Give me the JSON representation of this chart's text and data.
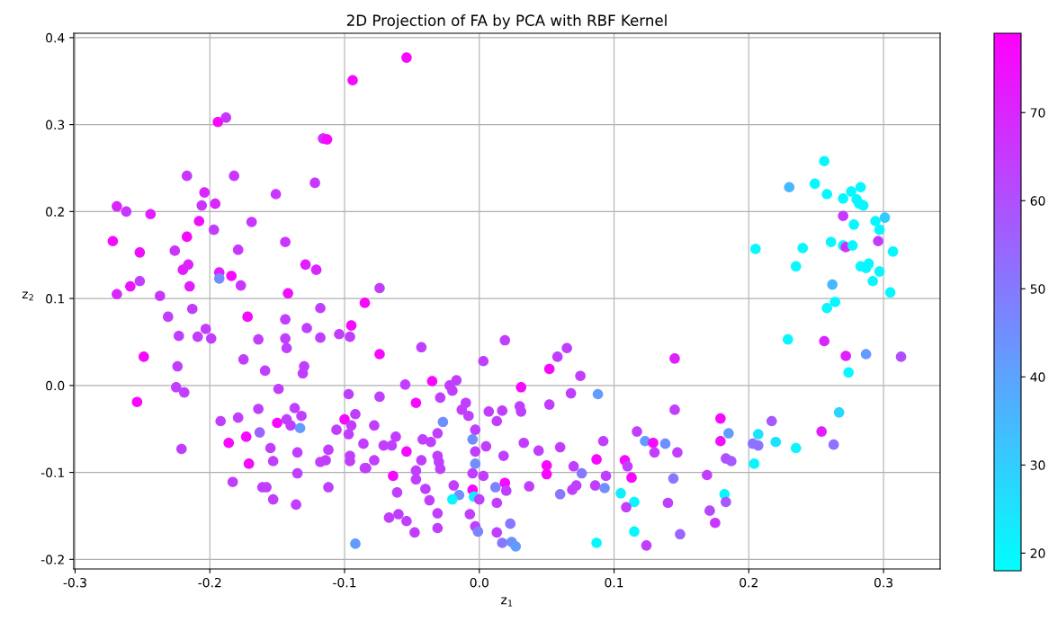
{
  "chart_data": {
    "type": "scatter",
    "title": "2D Projection of FA by PCA with RBF Kernel",
    "xlabel": "z$_{1}$",
    "ylabel": "z$_{2}$",
    "xlim": [
      -0.301,
      0.342
    ],
    "ylim": [
      -0.211,
      0.405
    ],
    "xticks": [
      -0.3,
      -0.2,
      -0.1,
      {
        "value": 0,
        "label": "0.0"
      },
      0.1,
      0.2,
      0.3
    ],
    "yticks": [
      -0.2,
      -0.1,
      {
        "value": 0,
        "label": "0.0"
      },
      0.1,
      0.2,
      0.3,
      0.4
    ],
    "clim": [
      18,
      79
    ],
    "cticks": [
      20,
      30,
      40,
      50,
      60,
      70
    ],
    "grid": true,
    "marker": "circle",
    "legend": false,
    "x": [
      -0.094,
      -0.054,
      -0.194,
      -0.188,
      -0.116,
      -0.113,
      -0.217,
      -0.182,
      -0.204,
      -0.206,
      -0.196,
      -0.151,
      -0.122,
      -0.269,
      -0.262,
      -0.244,
      -0.208,
      -0.197,
      -0.169,
      -0.272,
      -0.217,
      -0.252,
      -0.226,
      -0.179,
      -0.144,
      -0.129,
      -0.121,
      -0.216,
      -0.22,
      -0.193,
      -0.193,
      -0.184,
      -0.177,
      -0.142,
      -0.085,
      -0.252,
      -0.259,
      -0.269,
      -0.237,
      -0.215,
      -0.074,
      -0.231,
      -0.213,
      -0.172,
      -0.144,
      -0.118,
      -0.128,
      -0.118,
      -0.104,
      -0.095,
      -0.096,
      -0.223,
      -0.209,
      -0.203,
      -0.199,
      -0.164,
      -0.144,
      -0.143,
      -0.249,
      -0.224,
      -0.175,
      -0.159,
      -0.13,
      -0.131,
      -0.225,
      -0.219,
      -0.254,
      -0.149,
      -0.097,
      -0.164,
      -0.137,
      -0.132,
      -0.192,
      -0.179,
      -0.15,
      -0.143,
      -0.14,
      -0.133,
      -0.163,
      -0.106,
      -0.1,
      -0.092,
      -0.095,
      -0.097,
      -0.186,
      -0.173,
      -0.155,
      -0.135,
      -0.112,
      -0.153,
      -0.171,
      -0.118,
      -0.114,
      -0.096,
      -0.096,
      -0.086,
      -0.085,
      -0.221,
      -0.135,
      -0.183,
      -0.161,
      -0.158,
      -0.112,
      -0.153,
      -0.136,
      -0.092,
      -0.043,
      -0.074,
      0.019,
      0.003,
      0.065,
      0.058,
      0.052,
      0.075,
      -0.055,
      -0.035,
      -0.022,
      -0.017,
      -0.02,
      0.031,
      0.068,
      0.088,
      -0.074,
      -0.047,
      -0.029,
      -0.01,
      -0.013,
      -0.008,
      0.007,
      0.017,
      0.013,
      0.03,
      0.031,
      0.052,
      -0.027,
      -0.078,
      -0.003,
      -0.005,
      -0.062,
      -0.071,
      -0.065,
      -0.042,
      -0.036,
      -0.031,
      -0.054,
      -0.078,
      -0.043,
      -0.031,
      -0.03,
      -0.029,
      -0.003,
      0.005,
      0.018,
      0.033,
      0.044,
      0.06,
      0.092,
      0.087,
      0.117,
      0.123,
      0.129,
      -0.084,
      -0.047,
      -0.064,
      -0.047,
      -0.04,
      -0.061,
      -0.037,
      -0.019,
      -0.015,
      -0.02,
      -0.005,
      -0.003,
      0.003,
      -0.005,
      -0.004,
      0.0,
      0.012,
      0.019,
      0.02,
      0.013,
      0.037,
      0.05,
      0.05,
      0.07,
      0.076,
      0.094,
      0.086,
      0.093,
      0.072,
      0.069,
      0.06,
      0.108,
      0.11,
      0.113,
      0.105,
      0.115,
      0.109,
      0.115,
      0.124,
      0.087,
      -0.067,
      -0.06,
      -0.054,
      -0.048,
      -0.031,
      -0.031,
      -0.007,
      -0.003,
      -0.001,
      0.023,
      0.013,
      0.017,
      0.024,
      0.027,
      0.258,
      0.264,
      0.229,
      0.256,
      0.272,
      0.287,
      0.313,
      0.274,
      0.145,
      0.145,
      0.179,
      0.185,
      0.179,
      0.183,
      0.187,
      0.138,
      0.13,
      0.147,
      0.144,
      0.169,
      0.182,
      0.183,
      0.14,
      0.171,
      0.175,
      0.149,
      0.217,
      0.207,
      0.203,
      0.207,
      0.204,
      0.22,
      0.235,
      0.254,
      0.263,
      0.267,
      0.256,
      0.23,
      0.249,
      0.258,
      0.27,
      0.276,
      0.283,
      0.28,
      0.282,
      0.285,
      0.27,
      0.278,
      0.294,
      0.301,
      0.297,
      0.261,
      0.27,
      0.272,
      0.277,
      0.296,
      0.307,
      0.205,
      0.24,
      0.235,
      0.283,
      0.289,
      0.287,
      0.297,
      0.292,
      0.305,
      0.262
    ],
    "values": [
      0.351,
      0.377,
      0.303,
      0.308,
      0.284,
      0.283,
      0.241,
      0.241,
      0.222,
      0.207,
      0.209,
      0.22,
      0.233,
      0.206,
      0.2,
      0.197,
      0.189,
      0.179,
      0.188,
      0.166,
      0.171,
      0.153,
      0.155,
      0.156,
      0.165,
      0.139,
      0.133,
      0.139,
      0.133,
      0.13,
      0.123,
      0.126,
      0.115,
      0.106,
      0.095,
      0.12,
      0.114,
      0.105,
      0.103,
      0.114,
      0.112,
      0.079,
      0.088,
      0.079,
      0.076,
      0.089,
      0.066,
      0.055,
      0.059,
      0.069,
      0.056,
      0.057,
      0.056,
      0.065,
      0.054,
      0.053,
      0.054,
      0.043,
      0.033,
      0.022,
      0.03,
      0.017,
      0.022,
      0.014,
      -0.002,
      -0.008,
      -0.019,
      -0.004,
      -0.01,
      -0.027,
      -0.026,
      -0.035,
      -0.041,
      -0.037,
      -0.043,
      -0.039,
      -0.046,
      -0.049,
      -0.054,
      -0.051,
      -0.039,
      -0.033,
      -0.046,
      -0.056,
      -0.066,
      -0.059,
      -0.072,
      -0.077,
      -0.074,
      -0.087,
      -0.09,
      -0.088,
      -0.086,
      -0.081,
      -0.087,
      -0.067,
      -0.095,
      -0.073,
      -0.101,
      -0.111,
      -0.117,
      -0.117,
      -0.117,
      -0.131,
      -0.137,
      -0.182,
      0.044,
      0.036,
      0.052,
      0.028,
      0.043,
      0.033,
      0.019,
      0.011,
      0.001,
      0.005,
      0.0,
      0.006,
      -0.006,
      -0.002,
      -0.009,
      -0.01,
      -0.013,
      -0.02,
      -0.014,
      -0.02,
      -0.028,
      -0.035,
      -0.03,
      -0.029,
      -0.041,
      -0.024,
      -0.03,
      -0.022,
      -0.042,
      -0.046,
      -0.051,
      -0.062,
      -0.059,
      -0.069,
      -0.069,
      -0.062,
      -0.065,
      -0.055,
      -0.076,
      -0.086,
      -0.086,
      -0.081,
      -0.088,
      -0.096,
      -0.076,
      -0.07,
      -0.081,
      -0.066,
      -0.075,
      -0.071,
      -0.064,
      -0.085,
      -0.053,
      -0.064,
      -0.066,
      -0.095,
      -0.098,
      -0.104,
      -0.108,
      -0.119,
      -0.123,
      -0.132,
      -0.115,
      -0.126,
      -0.131,
      -0.101,
      -0.09,
      -0.104,
      -0.12,
      -0.128,
      -0.131,
      -0.117,
      -0.112,
      -0.121,
      -0.135,
      -0.116,
      -0.092,
      -0.102,
      -0.093,
      -0.101,
      -0.104,
      -0.115,
      -0.118,
      -0.115,
      -0.12,
      -0.125,
      -0.086,
      -0.093,
      -0.106,
      -0.124,
      -0.134,
      -0.14,
      -0.168,
      -0.184,
      -0.181,
      -0.152,
      -0.148,
      -0.156,
      -0.169,
      -0.147,
      -0.164,
      -0.148,
      -0.162,
      -0.168,
      -0.159,
      -0.169,
      -0.181,
      -0.18,
      -0.185,
      0.089,
      0.096,
      0.053,
      0.051,
      0.034,
      0.036,
      0.033,
      0.015,
      0.031,
      -0.028,
      -0.038,
      -0.055,
      -0.064,
      -0.084,
      -0.087,
      -0.067,
      -0.077,
      -0.077,
      -0.107,
      -0.103,
      -0.125,
      -0.134,
      -0.135,
      -0.144,
      -0.158,
      -0.171,
      -0.041,
      -0.056,
      -0.067,
      -0.069,
      -0.09,
      -0.065,
      -0.072,
      -0.053,
      -0.068,
      -0.031,
      0.258,
      0.228,
      0.232,
      0.22,
      0.215,
      0.223,
      0.228,
      0.214,
      0.209,
      0.207,
      0.195,
      0.185,
      0.189,
      0.193,
      0.179,
      0.165,
      0.161,
      0.159,
      0.161,
      0.166,
      0.154,
      0.157,
      0.158,
      0.137,
      0.137,
      0.14,
      0.135,
      0.131,
      0.12,
      0.107,
      0.116
    ],
    "cvalues": [
      77,
      77,
      77,
      66,
      68,
      77,
      66,
      66,
      70,
      66,
      70,
      66,
      66,
      70,
      66,
      72,
      75,
      64,
      66,
      77,
      77,
      75,
      66,
      66,
      66,
      72,
      70,
      70,
      72,
      72,
      45,
      77,
      66,
      75,
      77,
      64,
      75,
      70,
      66,
      72,
      64,
      64,
      64,
      77,
      64,
      64,
      64,
      64,
      64,
      77,
      64,
      64,
      64,
      64,
      64,
      64,
      64,
      64,
      77,
      64,
      64,
      64,
      64,
      64,
      64,
      64,
      77,
      64,
      64,
      64,
      64,
      64,
      64,
      64,
      77,
      64,
      64,
      42,
      55,
      64,
      77,
      64,
      64,
      64,
      77,
      77,
      64,
      64,
      64,
      64,
      77,
      64,
      64,
      64,
      64,
      64,
      64,
      64,
      64,
      64,
      64,
      64,
      64,
      64,
      64,
      42,
      64,
      77,
      64,
      64,
      64,
      64,
      77,
      64,
      64,
      77,
      64,
      64,
      64,
      77,
      64,
      42,
      64,
      77,
      64,
      64,
      64,
      64,
      64,
      64,
      64,
      64,
      64,
      64,
      45,
      64,
      64,
      45,
      64,
      64,
      64,
      64,
      64,
      64,
      77,
      64,
      64,
      64,
      64,
      64,
      64,
      64,
      64,
      64,
      64,
      64,
      64,
      77,
      64,
      42,
      77,
      64,
      64,
      77,
      64,
      64,
      64,
      64,
      64,
      45,
      20,
      64,
      45,
      64,
      77,
      22,
      64,
      48,
      77,
      64,
      64,
      64,
      77,
      77,
      64,
      50,
      64,
      64,
      45,
      64,
      64,
      50,
      77,
      64,
      77,
      22,
      20,
      64,
      20,
      64,
      20,
      64,
      64,
      64,
      64,
      64,
      64,
      64,
      64,
      48,
      50,
      64,
      50,
      45,
      42,
      20,
      20,
      20,
      70,
      72,
      42,
      60,
      20,
      72,
      64,
      77,
      42,
      75,
      60,
      58,
      45,
      64,
      64,
      50,
      64,
      20,
      58,
      64,
      62,
      66,
      55,
      58,
      25,
      52,
      52,
      20,
      25,
      20,
      72,
      52,
      28,
      20,
      35,
      20,
      20,
      20,
      20,
      20,
      20,
      20,
      20,
      65,
      20,
      20,
      30,
      20,
      20,
      20,
      68,
      20,
      65,
      20,
      20,
      20,
      20,
      20,
      20,
      20,
      20,
      20,
      20,
      35
    ]
  }
}
